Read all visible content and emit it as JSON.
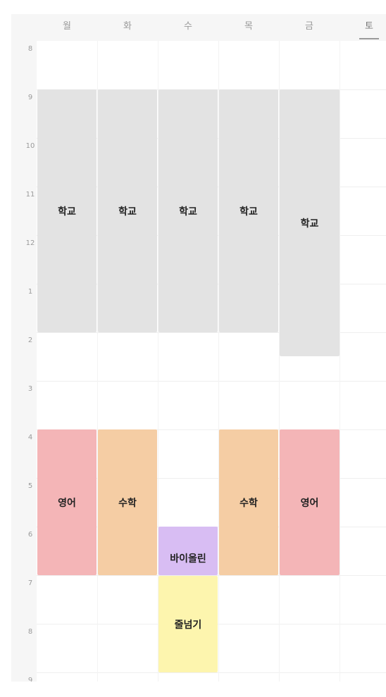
{
  "days": [
    {
      "key": "mon",
      "label": "월"
    },
    {
      "key": "tue",
      "label": "화"
    },
    {
      "key": "wed",
      "label": "수"
    },
    {
      "key": "thu",
      "label": "목"
    },
    {
      "key": "fri",
      "label": "금"
    },
    {
      "key": "sat",
      "label": "토",
      "active": true
    }
  ],
  "hours": [
    "8",
    "9",
    "10",
    "11",
    "12",
    "1",
    "2",
    "3",
    "4",
    "5",
    "6",
    "7",
    "8",
    "9"
  ],
  "events": {
    "mon_school": "학교",
    "tue_school": "학교",
    "wed_school": "학교",
    "thu_school": "학교",
    "fri_school": "학교",
    "mon_english": "영어",
    "tue_math": "수학",
    "wed_violin": "바이올린",
    "wed_jumprope": "줄넘기",
    "thu_math": "수학",
    "fri_english": "영어"
  },
  "colors": {
    "school": "#e3e3e3",
    "english": "#f4b5b7",
    "math": "#f5cda4",
    "violin": "#d8bdf3",
    "jumprope": "#fdf5ae"
  }
}
